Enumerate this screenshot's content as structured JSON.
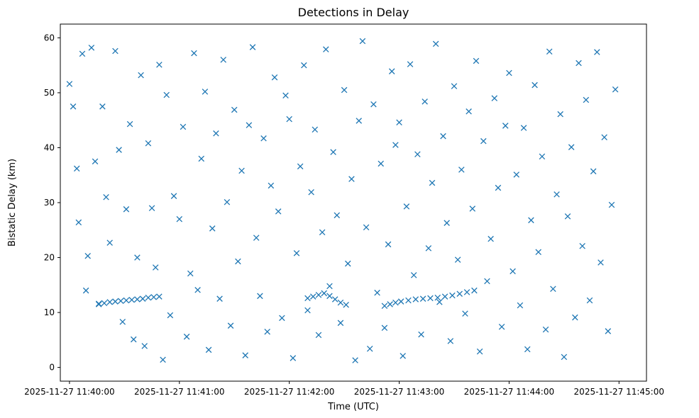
{
  "chart_data": {
    "type": "scatter",
    "title": "Detections in Delay",
    "xlabel": "Time (UTC)",
    "ylabel": "Bistatic Delay (km)",
    "xlim": [
      "2025-11-27 11:39:55",
      "2025-11-27 11:45:15"
    ],
    "ylim": [
      -2.5,
      62.5
    ],
    "x_ticks": [
      "2025-11-27 11:40:00",
      "2025-11-27 11:41:00",
      "2025-11-27 11:42:00",
      "2025-11-27 11:43:00",
      "2025-11-27 11:44:00",
      "2025-11-27 11:45:00"
    ],
    "y_ticks": [
      0,
      10,
      20,
      30,
      40,
      50,
      60
    ],
    "marker": "x",
    "marker_color": "#1f77b4",
    "grid": false,
    "x": [
      "2025-11-27 11:40:00",
      "2025-11-27 11:40:02",
      "2025-11-27 11:40:04",
      "2025-11-27 11:40:05",
      "2025-11-27 11:40:07",
      "2025-11-27 11:40:09",
      "2025-11-27 11:40:10",
      "2025-11-27 11:40:12",
      "2025-11-27 11:40:14",
      "2025-11-27 11:40:16",
      "2025-11-27 11:40:18",
      "2025-11-27 11:40:20",
      "2025-11-27 11:40:22",
      "2025-11-27 11:40:25",
      "2025-11-27 11:40:27",
      "2025-11-27 11:40:29",
      "2025-11-27 11:40:31",
      "2025-11-27 11:40:33",
      "2025-11-27 11:40:35",
      "2025-11-27 11:40:37",
      "2025-11-27 11:40:39",
      "2025-11-27 11:40:41",
      "2025-11-27 11:40:43",
      "2025-11-27 11:40:45",
      "2025-11-27 11:40:47",
      "2025-11-27 11:40:49",
      "2025-11-27 11:40:51",
      "2025-11-27 11:40:53",
      "2025-11-27 11:40:55",
      "2025-11-27 11:40:57",
      "2025-11-27 11:41:00",
      "2025-11-27 11:41:02",
      "2025-11-27 11:41:04",
      "2025-11-27 11:41:06",
      "2025-11-27 11:41:08",
      "2025-11-27 11:41:10",
      "2025-11-27 11:41:12",
      "2025-11-27 11:41:14",
      "2025-11-27 11:41:16",
      "2025-11-27 11:41:18",
      "2025-11-27 11:41:20",
      "2025-11-27 11:41:22",
      "2025-11-27 11:41:24",
      "2025-11-27 11:41:26",
      "2025-11-27 11:41:28",
      "2025-11-27 11:41:30",
      "2025-11-27 11:41:32",
      "2025-11-27 11:41:34",
      "2025-11-27 11:41:36",
      "2025-11-27 11:41:38",
      "2025-11-27 11:41:40",
      "2025-11-27 11:41:42",
      "2025-11-27 11:41:44",
      "2025-11-27 11:41:46",
      "2025-11-27 11:41:48",
      "2025-11-27 11:41:50",
      "2025-11-27 11:41:52",
      "2025-11-27 11:41:54",
      "2025-11-27 11:41:56",
      "2025-11-27 11:41:58",
      "2025-11-27 11:42:00",
      "2025-11-27 11:42:02",
      "2025-11-27 11:42:04",
      "2025-11-27 11:42:06",
      "2025-11-27 11:42:08",
      "2025-11-27 11:42:10",
      "2025-11-27 11:42:12",
      "2025-11-27 11:42:14",
      "2025-11-27 11:42:16",
      "2025-11-27 11:42:18",
      "2025-11-27 11:42:20",
      "2025-11-27 11:42:22",
      "2025-11-27 11:42:24",
      "2025-11-27 11:42:26",
      "2025-11-27 11:42:28",
      "2025-11-27 11:42:30",
      "2025-11-27 11:42:32",
      "2025-11-27 11:42:34",
      "2025-11-27 11:42:36",
      "2025-11-27 11:42:38",
      "2025-11-27 11:42:40",
      "2025-11-27 11:42:42",
      "2025-11-27 11:42:44",
      "2025-11-27 11:42:46",
      "2025-11-27 11:42:48",
      "2025-11-27 11:42:50",
      "2025-11-27 11:42:52",
      "2025-11-27 11:42:54",
      "2025-11-27 11:42:56",
      "2025-11-27 11:42:58",
      "2025-11-27 11:43:00",
      "2025-11-27 11:43:02",
      "2025-11-27 11:43:04",
      "2025-11-27 11:43:06",
      "2025-11-27 11:43:08",
      "2025-11-27 11:43:10",
      "2025-11-27 11:43:12",
      "2025-11-27 11:43:14",
      "2025-11-27 11:43:16",
      "2025-11-27 11:43:18",
      "2025-11-27 11:43:20",
      "2025-11-27 11:43:22",
      "2025-11-27 11:43:24",
      "2025-11-27 11:43:26",
      "2025-11-27 11:43:28",
      "2025-11-27 11:43:30",
      "2025-11-27 11:43:32",
      "2025-11-27 11:43:34",
      "2025-11-27 11:43:36",
      "2025-11-27 11:43:38",
      "2025-11-27 11:43:40",
      "2025-11-27 11:43:42",
      "2025-11-27 11:43:44",
      "2025-11-27 11:43:46",
      "2025-11-27 11:43:48",
      "2025-11-27 11:43:50",
      "2025-11-27 11:43:52",
      "2025-11-27 11:43:54",
      "2025-11-27 11:43:56",
      "2025-11-27 11:43:58",
      "2025-11-27 11:44:00",
      "2025-11-27 11:44:02",
      "2025-11-27 11:44:04",
      "2025-11-27 11:44:06",
      "2025-11-27 11:44:08",
      "2025-11-27 11:44:10",
      "2025-11-27 11:44:12",
      "2025-11-27 11:44:14",
      "2025-11-27 11:44:16",
      "2025-11-27 11:44:18",
      "2025-11-27 11:44:20",
      "2025-11-27 11:44:22",
      "2025-11-27 11:44:24",
      "2025-11-27 11:44:26",
      "2025-11-27 11:44:28",
      "2025-11-27 11:44:30",
      "2025-11-27 11:44:32",
      "2025-11-27 11:44:34",
      "2025-11-27 11:44:36",
      "2025-11-27 11:44:38",
      "2025-11-27 11:44:40",
      "2025-11-27 11:44:42",
      "2025-11-27 11:44:44",
      "2025-11-27 11:44:46",
      "2025-11-27 11:44:48",
      "2025-11-27 11:44:50",
      "2025-11-27 11:44:52",
      "2025-11-27 11:44:54",
      "2025-11-27 11:44:56",
      "2025-11-27 11:44:58",
      "2025-11-27 11:40:16",
      "2025-11-27 11:40:19",
      "2025-11-27 11:40:22",
      "2025-11-27 11:40:25",
      "2025-11-27 11:40:28",
      "2025-11-27 11:40:31",
      "2025-11-27 11:40:34",
      "2025-11-27 11:40:37",
      "2025-11-27 11:40:40",
      "2025-11-27 11:40:43",
      "2025-11-27 11:40:46",
      "2025-11-27 11:40:49",
      "2025-11-27 11:42:10",
      "2025-11-27 11:42:13",
      "2025-11-27 11:42:16",
      "2025-11-27 11:42:19",
      "2025-11-27 11:42:22",
      "2025-11-27 11:42:25",
      "2025-11-27 11:42:28",
      "2025-11-27 11:42:31",
      "2025-11-27 11:42:52",
      "2025-11-27 11:42:55",
      "2025-11-27 11:42:58",
      "2025-11-27 11:43:01",
      "2025-11-27 11:43:05",
      "2025-11-27 11:43:09",
      "2025-11-27 11:43:13",
      "2025-11-27 11:43:17",
      "2025-11-27 11:43:21",
      "2025-11-27 11:43:25",
      "2025-11-27 11:43:29",
      "2025-11-27 11:43:33",
      "2025-11-27 11:43:37",
      "2025-11-27 11:43:41"
    ],
    "y": [
      51.6,
      47.5,
      36.2,
      26.4,
      57.1,
      14.0,
      20.3,
      58.2,
      37.5,
      11.6,
      47.5,
      31.0,
      22.7,
      57.6,
      39.6,
      8.3,
      28.8,
      44.3,
      5.1,
      20.0,
      53.2,
      3.9,
      40.8,
      29.0,
      18.2,
      55.1,
      1.4,
      49.6,
      9.5,
      31.2,
      27.0,
      43.8,
      5.6,
      17.1,
      57.2,
      14.1,
      38.0,
      50.2,
      3.2,
      25.3,
      42.6,
      12.5,
      56.0,
      30.1,
      7.6,
      46.9,
      19.3,
      35.8,
      2.2,
      44.1,
      58.3,
      23.6,
      13.0,
      41.7,
      6.5,
      33.1,
      52.8,
      28.4,
      9.0,
      49.5,
      45.2,
      1.7,
      20.8,
      36.6,
      55.0,
      10.4,
      31.9,
      43.3,
      5.9,
      24.6,
      57.9,
      14.8,
      39.2,
      27.7,
      8.1,
      50.5,
      18.9,
      34.3,
      1.3,
      44.9,
      59.4,
      25.5,
      3.4,
      47.9,
      13.6,
      37.1,
      7.2,
      22.4,
      53.9,
      40.5,
      44.6,
      2.1,
      29.3,
      55.2,
      16.8,
      38.8,
      6.0,
      48.4,
      21.7,
      33.6,
      58.9,
      11.9,
      42.1,
      26.3,
      4.8,
      51.2,
      19.6,
      36.0,
      9.8,
      46.6,
      28.9,
      55.8,
      2.9,
      41.2,
      15.7,
      23.4,
      49.0,
      32.7,
      7.4,
      44.0,
      53.6,
      17.5,
      35.1,
      11.3,
      43.6,
      3.3,
      26.8,
      51.4,
      21.0,
      38.4,
      6.9,
      57.5,
      14.3,
      31.5,
      46.1,
      1.9,
      27.5,
      40.1,
      9.1,
      55.4,
      22.1,
      48.7,
      12.2,
      35.7,
      57.4,
      19.1,
      41.9,
      6.6,
      29.6,
      50.6,
      11.5,
      11.7,
      11.9,
      12.0,
      12.1,
      12.2,
      12.3,
      12.4,
      12.5,
      12.7,
      12.8,
      12.9,
      12.6,
      12.9,
      13.2,
      13.5,
      13.0,
      12.4,
      11.8,
      11.4,
      11.2,
      11.5,
      11.8,
      12.0,
      12.2,
      12.4,
      12.5,
      12.6,
      12.7,
      12.9,
      13.1,
      13.4,
      13.7,
      14.0
    ]
  }
}
